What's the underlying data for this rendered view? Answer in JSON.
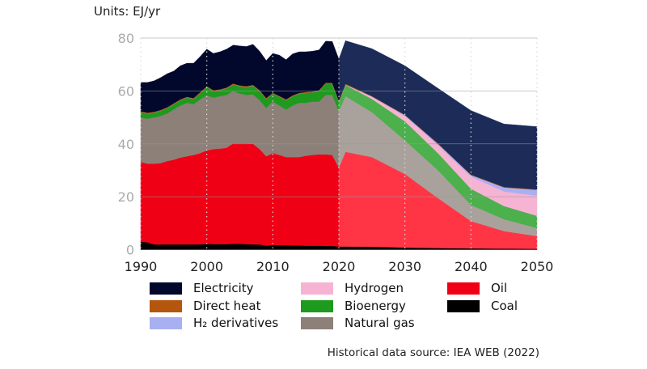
{
  "chart_data": {
    "type": "area",
    "stacked": true,
    "title": "",
    "units_label": "Units: EJ/yr",
    "xlabel": "",
    "ylabel": "",
    "xlim": [
      1990,
      2050
    ],
    "ylim": [
      0,
      80
    ],
    "yticks": [
      0,
      20,
      40,
      60,
      80
    ],
    "xticks": [
      1990,
      2000,
      2010,
      2020,
      2030,
      2040,
      2050
    ],
    "grid": "horizontal",
    "legend_position": "bottom",
    "projection_start": 2020,
    "x": [
      1990,
      1991,
      1992,
      1993,
      1994,
      1995,
      1996,
      1997,
      1998,
      1999,
      2000,
      2001,
      2002,
      2003,
      2004,
      2005,
      2006,
      2007,
      2008,
      2009,
      2010,
      2011,
      2012,
      2013,
      2014,
      2015,
      2016,
      2017,
      2018,
      2019,
      2020,
      2021,
      2025,
      2030,
      2035,
      2040,
      2045,
      2050
    ],
    "series": [
      {
        "name": "Coal",
        "color": "#000000",
        "proj_color": "#000000",
        "values": [
          3,
          2.8,
          2,
          2,
          2,
          2,
          2,
          2,
          2,
          2,
          2.2,
          2.1,
          2.1,
          2.1,
          2.2,
          2.2,
          2.1,
          2,
          2,
          1.5,
          1.8,
          1.7,
          1.7,
          1.6,
          1.6,
          1.5,
          1.5,
          1.5,
          1.4,
          1.4,
          1.2,
          1.2,
          1.1,
          0.8,
          0.6,
          0.5,
          0.4,
          0.3
        ]
      },
      {
        "name": "Oil",
        "color": "#f00014",
        "proj_color": "#ff3546",
        "values": [
          30.2,
          29.7,
          30.5,
          30.7,
          31.5,
          32,
          32.8,
          33.3,
          33.8,
          34.5,
          35.3,
          35.9,
          36.1,
          36.4,
          38,
          38,
          38.1,
          38,
          36,
          33.8,
          34.7,
          34.1,
          33.3,
          33.4,
          33.4,
          34,
          34.3,
          34.5,
          34.6,
          34.4,
          29.8,
          35.8,
          33.9,
          27.8,
          18.9,
          10.3,
          6.6,
          4.8
        ]
      },
      {
        "name": "Natural gas",
        "color": "#8c8079",
        "proj_color": "#a9a19b",
        "values": [
          16.8,
          17,
          17.5,
          17.8,
          18,
          19,
          19.7,
          20.2,
          19.2,
          20.3,
          20.8,
          19.5,
          19.8,
          20,
          19.8,
          18.8,
          18.3,
          18.7,
          18.5,
          18.2,
          19.5,
          18.7,
          18,
          19.5,
          20.5,
          20,
          20.2,
          20,
          22.5,
          22.7,
          21.5,
          21,
          17,
          12.7,
          10.5,
          6.1,
          4.5,
          3.1
        ]
      },
      {
        "name": "Bioenergy",
        "color": "#1e9a1e",
        "proj_color": "#4cb04c",
        "values": [
          2,
          2,
          1.8,
          2,
          2,
          2,
          2,
          2,
          2,
          2.4,
          3.2,
          2.5,
          2.3,
          2.5,
          2.5,
          2.8,
          3,
          3.3,
          3.5,
          3.5,
          3,
          3.3,
          3.5,
          3.5,
          3.5,
          3.8,
          3.5,
          4,
          4.3,
          4.3,
          3.5,
          4.3,
          5,
          7.2,
          6.5,
          6.1,
          5,
          4.6
        ]
      },
      {
        "name": "Hydrogen",
        "color": "#f6b3d3",
        "proj_color": "#f6b3d3",
        "values": [
          0,
          0,
          0,
          0,
          0,
          0,
          0,
          0,
          0,
          0,
          0,
          0,
          0,
          0,
          0,
          0,
          0,
          0,
          0,
          0,
          0,
          0,
          0,
          0,
          0,
          0,
          0,
          0,
          0,
          0,
          0,
          0.1,
          0.8,
          2,
          3,
          4.6,
          5.5,
          7.6
        ]
      },
      {
        "name": "H₂ derivatives",
        "color": "#a9b0f2",
        "proj_color": "#a9b0f2",
        "values": [
          0,
          0,
          0,
          0,
          0,
          0,
          0,
          0,
          0,
          0,
          0,
          0,
          0,
          0,
          0,
          0,
          0,
          0,
          0,
          0,
          0,
          0,
          0,
          0,
          0,
          0,
          0,
          0,
          0,
          0,
          0,
          0,
          0.1,
          0.3,
          0.5,
          0.6,
          1.5,
          2.2
        ]
      },
      {
        "name": "Direct heat",
        "color": "#b4560e",
        "proj_color": "#b4560e",
        "values": [
          0.3,
          0.3,
          0.3,
          0.3,
          0.3,
          0.3,
          0.3,
          0.3,
          0.3,
          0.3,
          0.3,
          0.3,
          0.3,
          0.3,
          0.3,
          0.3,
          0.3,
          0.3,
          0.3,
          0.3,
          0.3,
          0.3,
          0.3,
          0.3,
          0.3,
          0.3,
          0.3,
          0.3,
          0.3,
          0.3,
          0.3,
          0.3,
          0.2,
          0.2,
          0.2,
          0.2,
          0.2,
          0.2
        ]
      },
      {
        "name": "Electricity",
        "color": "#02082c",
        "proj_color": "#1c2b57",
        "values": [
          10.9,
          11.4,
          11.7,
          12.2,
          12.7,
          12.2,
          12.7,
          12.7,
          13.2,
          13.5,
          14,
          13.9,
          14.2,
          14.5,
          14.5,
          14.9,
          15,
          15.3,
          14.7,
          14.2,
          14.9,
          15.4,
          15,
          15.7,
          15.5,
          15.2,
          15.2,
          15.2,
          15.7,
          15.6,
          15.7,
          16.3,
          17.9,
          18.5,
          20.8,
          24.2,
          23.8,
          23.7
        ]
      }
    ],
    "legend_order": [
      "Electricity",
      "Direct heat",
      "H₂ derivatives",
      "Hydrogen",
      "Bioenergy",
      "Natural gas",
      "Oil",
      "Coal"
    ],
    "source": "Historical data source: IEA WEB (2022)"
  }
}
